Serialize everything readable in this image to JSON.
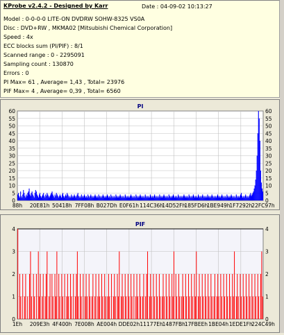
{
  "header": {
    "title": "KProbe v2.4.2 - Designed by Karr",
    "date": "Date : 04-09-02 10:13:27"
  },
  "info_lines": [
    "Model : 0-0-0-0 LITE-ON DVDRW SOHW-8325  VS0A",
    "Disc : DVD+RW , MKMA02 [Mitsubishi Chemical Corporation]",
    "Speed : 4x",
    "ECC blocks sum (PI/PIF) : 8/1",
    "Scanned range : 0 - 2295091",
    "Sampling count : 130870",
    "Errors : 0",
    "PI Max= 61 , Average= 1,43 , Total= 23976",
    "PIF Max= 4 , Average= 0,39 , Total= 6560"
  ],
  "colors": {
    "pi_series": "#0000ff",
    "pif_series": "#ff0000",
    "plot_bg": "#ffffff",
    "pif_bg": "#f4f4fa",
    "grid": "#c0c0c0",
    "title": "#000080",
    "pif_ref_line": "#000000",
    "info_bg": "#ffffe1"
  },
  "chart_data": [
    {
      "type": "area",
      "title": "PI",
      "ylim": [
        0,
        60
      ],
      "yticks": [
        0,
        5,
        10,
        15,
        20,
        25,
        30,
        35,
        40,
        45,
        50,
        55,
        60
      ],
      "xlim": [
        0,
        2295091
      ],
      "xtick_labels": [
        "88h",
        "20E81h",
        "50418h",
        "7FF08h",
        "B027Dh",
        "E0F61h",
        "114C36h",
        "14D52Fh",
        "185FD6h",
        "1BE949h",
        "1F7292h",
        "22FC97h"
      ],
      "grid": true,
      "summary": {
        "max": 61,
        "average": 1.43,
        "total": 23976
      },
      "series": [
        {
          "values": [
            4,
            5,
            3,
            2,
            6,
            3,
            2,
            4,
            7,
            5,
            3,
            2,
            4,
            3,
            5,
            6,
            8,
            4,
            3,
            5,
            6,
            4,
            3,
            2,
            5,
            7,
            6,
            4,
            3,
            2,
            4,
            5,
            3,
            2,
            3,
            4,
            5,
            3,
            2,
            4,
            3,
            5,
            4,
            3,
            2,
            3,
            4,
            5,
            6,
            4,
            3,
            2,
            4,
            3,
            5,
            4,
            3,
            2,
            3,
            4,
            3,
            2,
            4,
            5,
            3,
            2,
            3,
            4,
            3,
            5,
            4,
            3,
            2,
            3,
            2,
            4,
            3,
            2,
            3,
            4,
            3,
            2,
            3,
            4,
            5,
            3,
            2,
            3,
            2,
            4,
            3,
            2,
            3,
            4,
            3,
            2,
            3,
            2,
            4,
            3,
            2,
            3,
            4,
            3,
            2,
            3,
            2,
            3,
            4,
            3,
            2,
            3,
            2,
            4,
            3,
            2,
            3,
            2,
            3,
            4,
            3,
            2,
            3,
            2,
            3,
            4,
            3,
            2,
            3,
            2,
            4,
            3,
            2,
            3,
            2,
            3,
            2,
            4,
            3,
            2,
            3,
            2,
            3,
            4,
            3,
            2,
            3,
            2,
            3,
            2,
            4,
            3,
            2,
            3,
            2,
            3,
            2,
            3,
            4,
            3,
            2,
            3,
            2,
            3,
            2,
            4,
            3,
            2,
            3,
            2,
            3,
            4,
            3,
            2,
            3,
            2,
            3,
            2,
            4,
            3,
            2,
            3,
            2,
            3,
            2,
            4,
            3,
            2,
            3,
            2,
            3,
            4,
            3,
            2,
            3,
            2,
            3,
            2,
            4,
            3,
            2,
            3,
            2,
            3,
            4,
            3,
            2,
            3,
            2,
            3,
            2,
            4,
            3,
            2,
            3,
            2,
            3,
            4,
            3,
            2,
            3,
            2,
            3,
            2,
            4,
            3,
            2,
            3,
            2,
            3,
            2,
            3,
            4,
            3,
            2,
            3,
            2,
            3,
            2,
            4,
            3,
            2,
            3,
            2,
            3,
            4,
            3,
            2,
            3,
            2,
            3,
            2,
            4,
            3,
            2,
            3,
            2,
            3,
            4,
            3,
            2,
            3,
            2,
            3,
            2,
            4,
            3,
            2,
            3,
            2,
            3,
            4,
            3,
            2,
            3,
            2,
            3,
            2,
            3,
            4,
            3,
            2,
            3,
            2,
            3,
            4,
            3,
            2,
            3,
            2,
            3,
            2,
            4,
            3,
            2,
            3,
            2,
            3,
            4,
            3,
            2,
            3,
            2,
            3,
            2,
            4,
            3,
            2,
            3,
            2,
            3,
            4,
            5,
            3,
            2,
            3,
            2,
            3,
            4,
            3,
            2,
            3,
            2,
            3,
            4,
            5,
            3,
            4,
            5,
            6,
            8,
            10,
            14,
            20,
            30,
            45,
            61,
            55,
            40,
            20,
            12,
            8,
            6
          ]
        }
      ]
    },
    {
      "type": "bar",
      "title": "PIF",
      "ylim": [
        0,
        4
      ],
      "yticks": [
        0,
        1,
        2,
        3,
        4
      ],
      "reference_line": 4,
      "xlim": [
        0,
        2295091
      ],
      "xtick_labels": [
        "1Eh",
        "209E3h",
        "4F400h",
        "7E008h",
        "AE004h",
        "DDE02h",
        "11177Eh",
        "1487FBh",
        "17FBEEh",
        "1BE04h",
        "1EDE1Fh",
        "224C49h"
      ],
      "grid": true,
      "summary": {
        "max": 4,
        "average": 0.39,
        "total": 6560
      },
      "series": [
        {
          "values": [
            4,
            0,
            2,
            1,
            0,
            2,
            0,
            1,
            2,
            0,
            1,
            0,
            2,
            3,
            1,
            0,
            2,
            1,
            0,
            2,
            0,
            3,
            1,
            2,
            0,
            1,
            2,
            0,
            1,
            2,
            3,
            0,
            1,
            2,
            0,
            2,
            1,
            0,
            2,
            1,
            3,
            0,
            2,
            1,
            0,
            2,
            1,
            0,
            2,
            0,
            1,
            2,
            1,
            0,
            2,
            1,
            0,
            2,
            0,
            1,
            2,
            3,
            1,
            0,
            2,
            1,
            0,
            2,
            0,
            1,
            2,
            1,
            0,
            2,
            1,
            0,
            1,
            2,
            0,
            1,
            2,
            0,
            1,
            2,
            1,
            0,
            2,
            1,
            0,
            2,
            1,
            0,
            1,
            2,
            1,
            0,
            2,
            0,
            1,
            2,
            1,
            0,
            2,
            1,
            3,
            0,
            1,
            2,
            1,
            0,
            2,
            1,
            0,
            2,
            1,
            0,
            2,
            1,
            0,
            2,
            0,
            1,
            2,
            1,
            0,
            2,
            1,
            0,
            1,
            2,
            0,
            1,
            2,
            3,
            0,
            1,
            2,
            1,
            0,
            2,
            1,
            0,
            2,
            1,
            0,
            2,
            1,
            0,
            1,
            2,
            1,
            0,
            2,
            1,
            0,
            2,
            1,
            0,
            2,
            1,
            3,
            0,
            2,
            1,
            0,
            2,
            1,
            0,
            1,
            2,
            1,
            0,
            2,
            1,
            0,
            2,
            1,
            0,
            2,
            1,
            0,
            2,
            1,
            3,
            0,
            1,
            2,
            1,
            0,
            2,
            1,
            0,
            2,
            1,
            0,
            2,
            1,
            0,
            2,
            1,
            0,
            1,
            2,
            0,
            1,
            2,
            1,
            0,
            2,
            1,
            0,
            2,
            1,
            0,
            2,
            1,
            0,
            2,
            1,
            0,
            2,
            1,
            3,
            0,
            1,
            2,
            1,
            0,
            2,
            1,
            0,
            2,
            1,
            0,
            2,
            1,
            0,
            2,
            1,
            0,
            2,
            1,
            0,
            2,
            1,
            0,
            2,
            1,
            0,
            2,
            3,
            1
          ]
        }
      ]
    }
  ]
}
